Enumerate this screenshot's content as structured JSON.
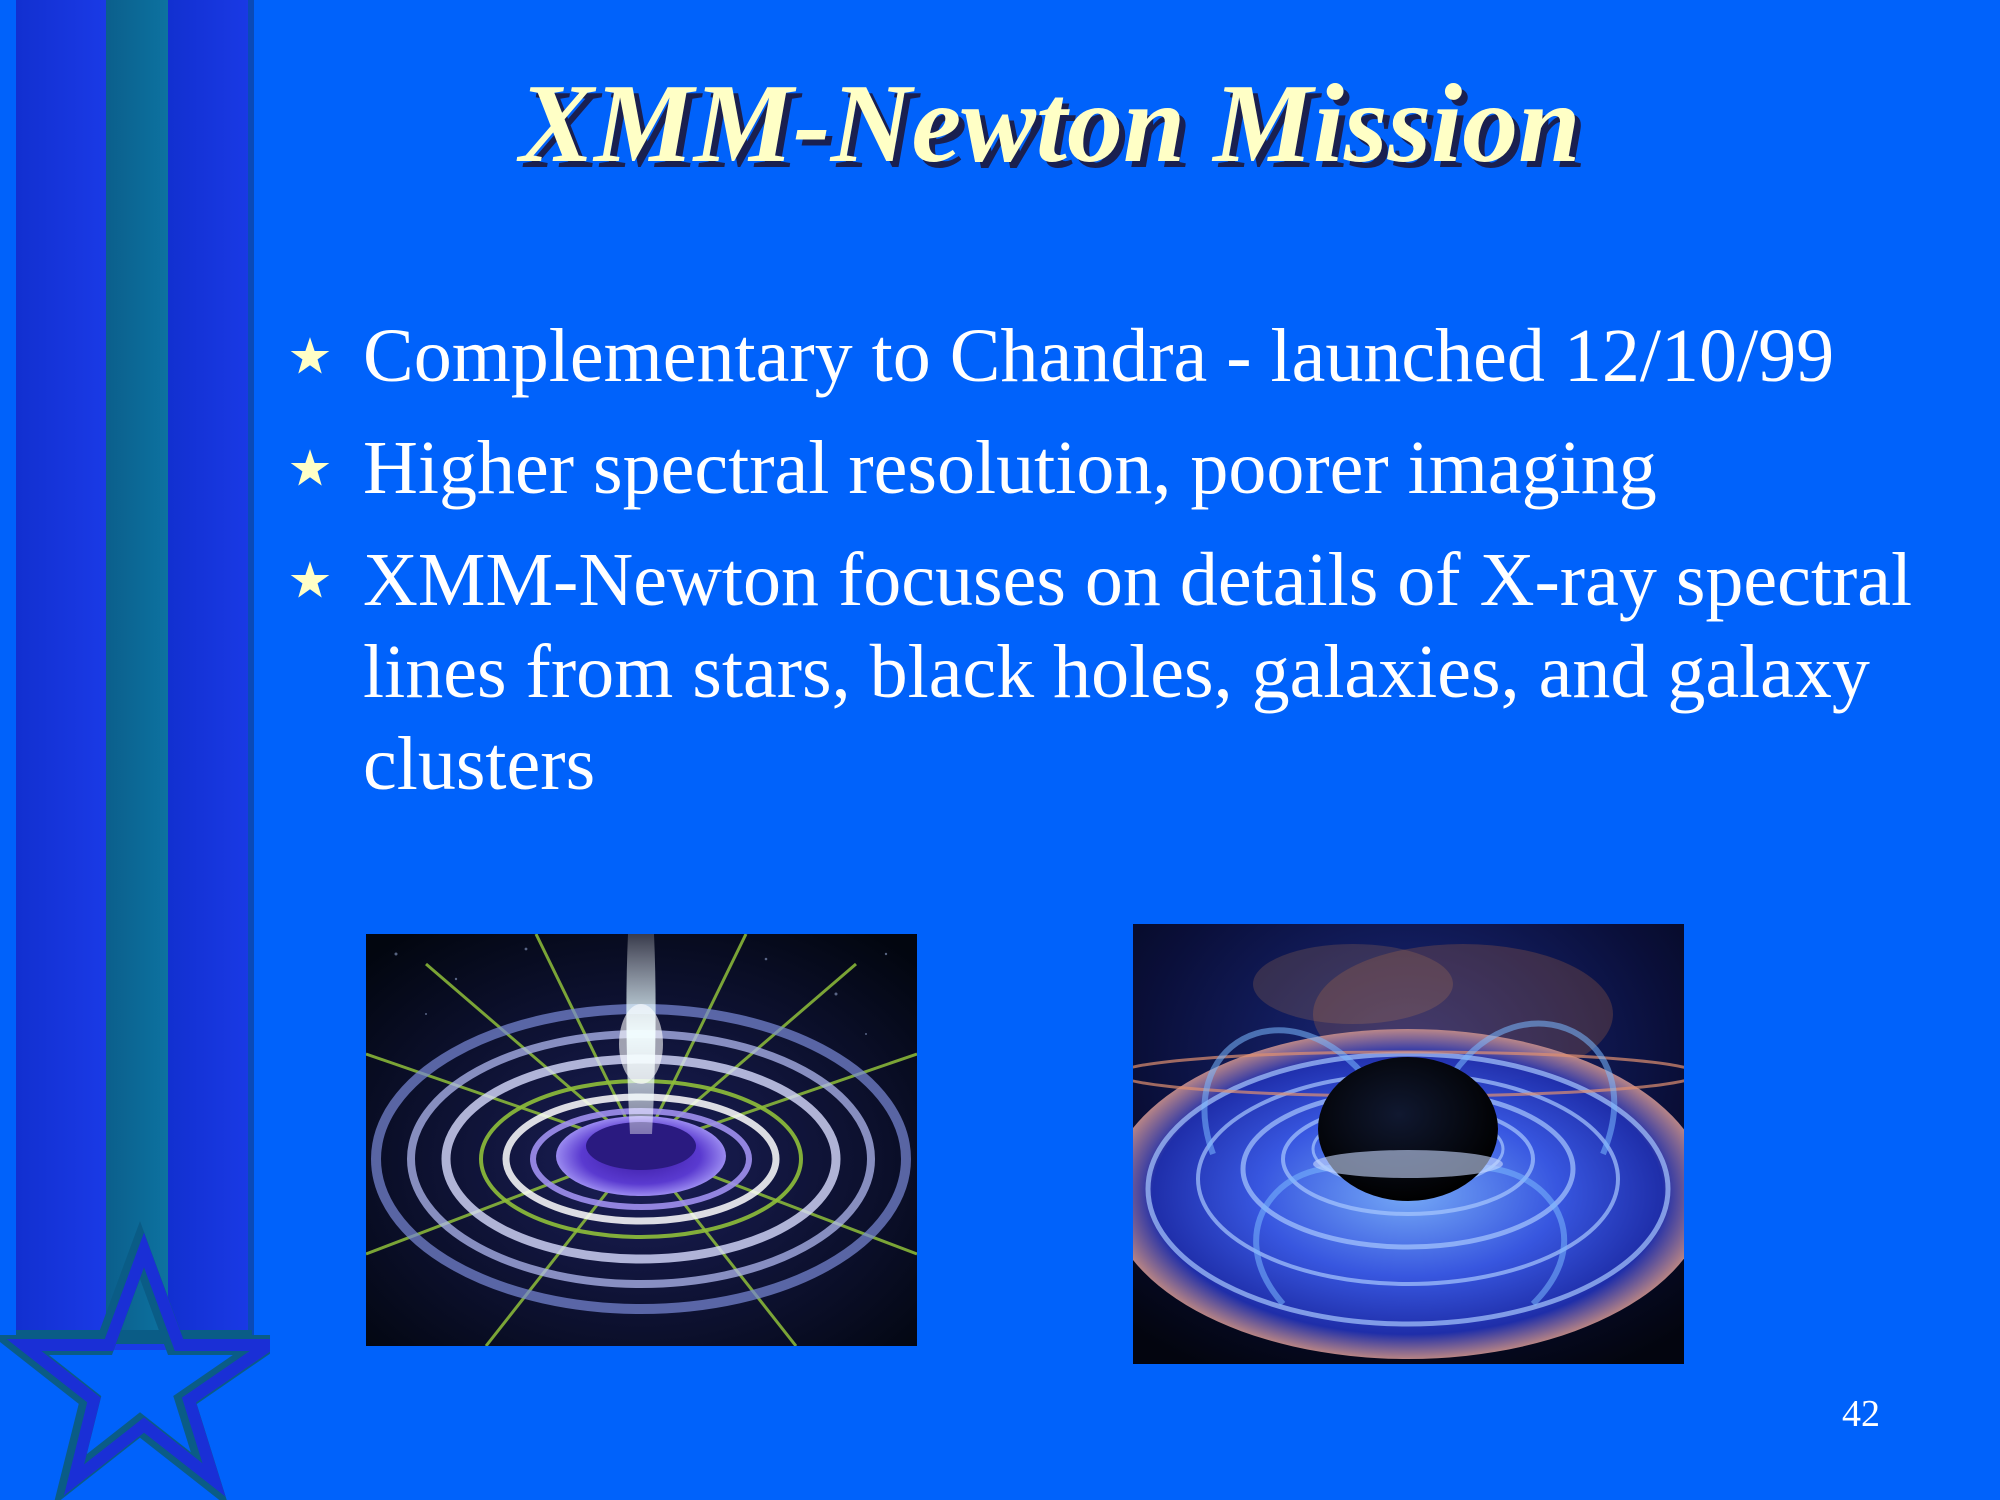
{
  "slide": {
    "title": "XMM-Newton Mission",
    "bullets": [
      {
        "text": "Complementary to Chandra  - launched 12/10/99"
      },
      {
        "text": "Higher spectral resolution, poorer imaging"
      },
      {
        "text": "XMM-Newton focuses on details of X-ray spectral lines from stars, black holes, galaxies, and galaxy clusters"
      }
    ],
    "bullet_icon": "star-icon",
    "page_number": "42",
    "colors": {
      "background": "#0062fb",
      "title": "#ffffc6",
      "title_shadow": "#1a2050",
      "body_text": "#ffffff",
      "bullet_star": "#ffffc6",
      "deco_blue": "#1a2fd6",
      "deco_teal": "#0a6a92"
    },
    "images": [
      {
        "name": "accretion-disk-grid-illustration"
      },
      {
        "name": "black-hole-accretion-disk-illustration"
      }
    ]
  }
}
